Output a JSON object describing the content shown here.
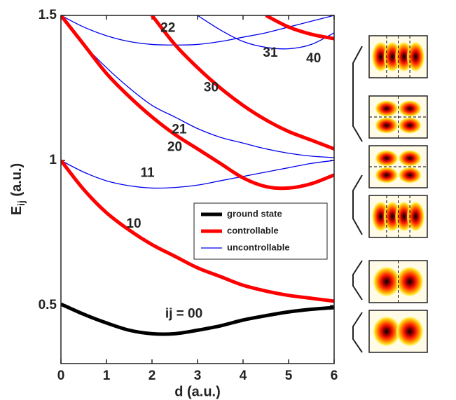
{
  "chart_data": {
    "type": "line",
    "xlabel": "d (a.u.)",
    "ylabel": {
      "main": "E",
      "sub": "ij",
      "rest": " (a.u.)"
    },
    "xlim": [
      0,
      6
    ],
    "xticks": [
      0,
      1,
      2,
      3,
      4,
      5,
      6
    ],
    "ylim": [
      0.3,
      1.5
    ],
    "yticks": [
      0.5,
      1,
      1.5
    ],
    "legend_position": "center right",
    "legend": [
      {
        "name": "ground state",
        "color": "#000000"
      },
      {
        "name": "controllable",
        "color": "#ff0000"
      },
      {
        "name": "uncontrollable",
        "color": "#0000ee"
      }
    ],
    "x": [
      0,
      0.5,
      1,
      1.5,
      2,
      2.5,
      3,
      3.5,
      4,
      4.5,
      5,
      5.5,
      6
    ],
    "series": [
      {
        "label": "ij = 00",
        "style": 0,
        "values": [
          0.505,
          0.47,
          0.44,
          0.415,
          0.403,
          0.403,
          0.415,
          0.43,
          0.45,
          0.465,
          0.478,
          0.487,
          0.493
        ]
      },
      {
        "label": "10",
        "style": 1,
        "values": [
          1.0,
          0.9,
          0.82,
          0.76,
          0.71,
          0.67,
          0.63,
          0.6,
          0.57,
          0.55,
          0.535,
          0.525,
          0.515
        ]
      },
      {
        "label": "11",
        "style": 2,
        "values": [
          1.0,
          0.96,
          0.93,
          0.913,
          0.905,
          0.907,
          0.915,
          0.93,
          0.945,
          0.96,
          0.975,
          0.99,
          1.0
        ]
      },
      {
        "label": "20",
        "style": 1,
        "values": [
          1.5,
          1.4,
          1.3,
          1.22,
          1.15,
          1.09,
          1.04,
          0.99,
          0.94,
          0.91,
          0.905,
          0.92,
          0.95
        ]
      },
      {
        "label": "21",
        "style": 2,
        "values": [
          1.5,
          1.4,
          1.32,
          1.25,
          1.19,
          1.15,
          1.11,
          1.08,
          1.06,
          1.04,
          1.025,
          1.015,
          1.01
        ]
      },
      {
        "label": "22",
        "style": 2,
        "values": [
          1.5,
          1.46,
          1.43,
          1.41,
          1.4,
          1.398,
          1.4,
          1.41,
          1.425,
          1.44,
          1.46,
          1.48,
          1.5
        ]
      },
      {
        "label": "30",
        "style": 1,
        "values": [
          null,
          null,
          null,
          null,
          1.5,
          1.4,
          1.32,
          1.25,
          1.19,
          1.14,
          1.1,
          1.07,
          1.04
        ]
      },
      {
        "label": "31",
        "style": 2,
        "values": [
          null,
          null,
          null,
          null,
          null,
          null,
          1.5,
          1.45,
          1.41,
          1.39,
          1.385,
          1.4,
          1.44
        ]
      },
      {
        "label": "40",
        "style": 1,
        "values": [
          null,
          null,
          null,
          null,
          null,
          null,
          null,
          null,
          null,
          1.5,
          1.46,
          1.435,
          1.42
        ]
      }
    ]
  }
}
